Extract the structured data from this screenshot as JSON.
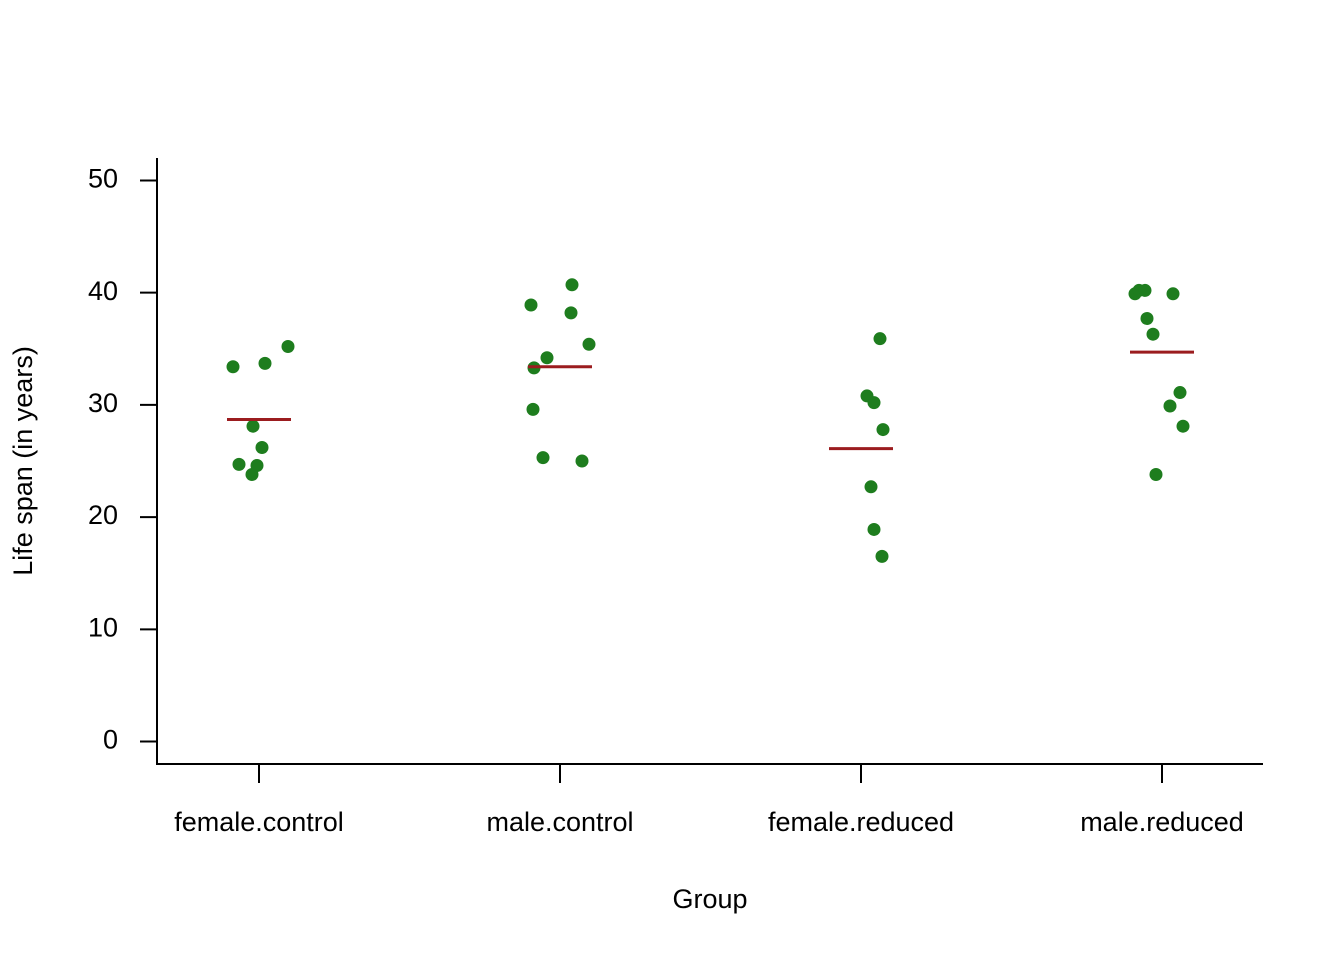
{
  "chart_data": {
    "type": "strip",
    "x_label": "Group",
    "y_label": "Life span (in years)",
    "categories": [
      "female.control",
      "male.control",
      "female.reduced",
      "male.reduced"
    ],
    "values": [
      [
        33.4,
        33.7,
        35.2,
        28.1,
        26.2,
        24.7,
        24.6,
        23.8
      ],
      [
        40.7,
        38.9,
        38.2,
        35.4,
        34.2,
        33.3,
        29.6,
        25.3,
        25.0
      ],
      [
        35.9,
        30.8,
        30.2,
        27.8,
        22.7,
        18.9,
        16.5
      ],
      [
        39.9,
        40.2,
        40.2,
        39.9,
        37.7,
        36.3,
        31.1,
        29.9,
        28.1,
        23.8
      ]
    ],
    "means": [
      28.7,
      33.4,
      26.1,
      34.7
    ],
    "color": "#1e7d1e",
    "mean_color": "#9b1c1f",
    "ylim": [
      -2,
      52
    ],
    "yticks": [
      0,
      10,
      20,
      30,
      40,
      50
    ]
  }
}
